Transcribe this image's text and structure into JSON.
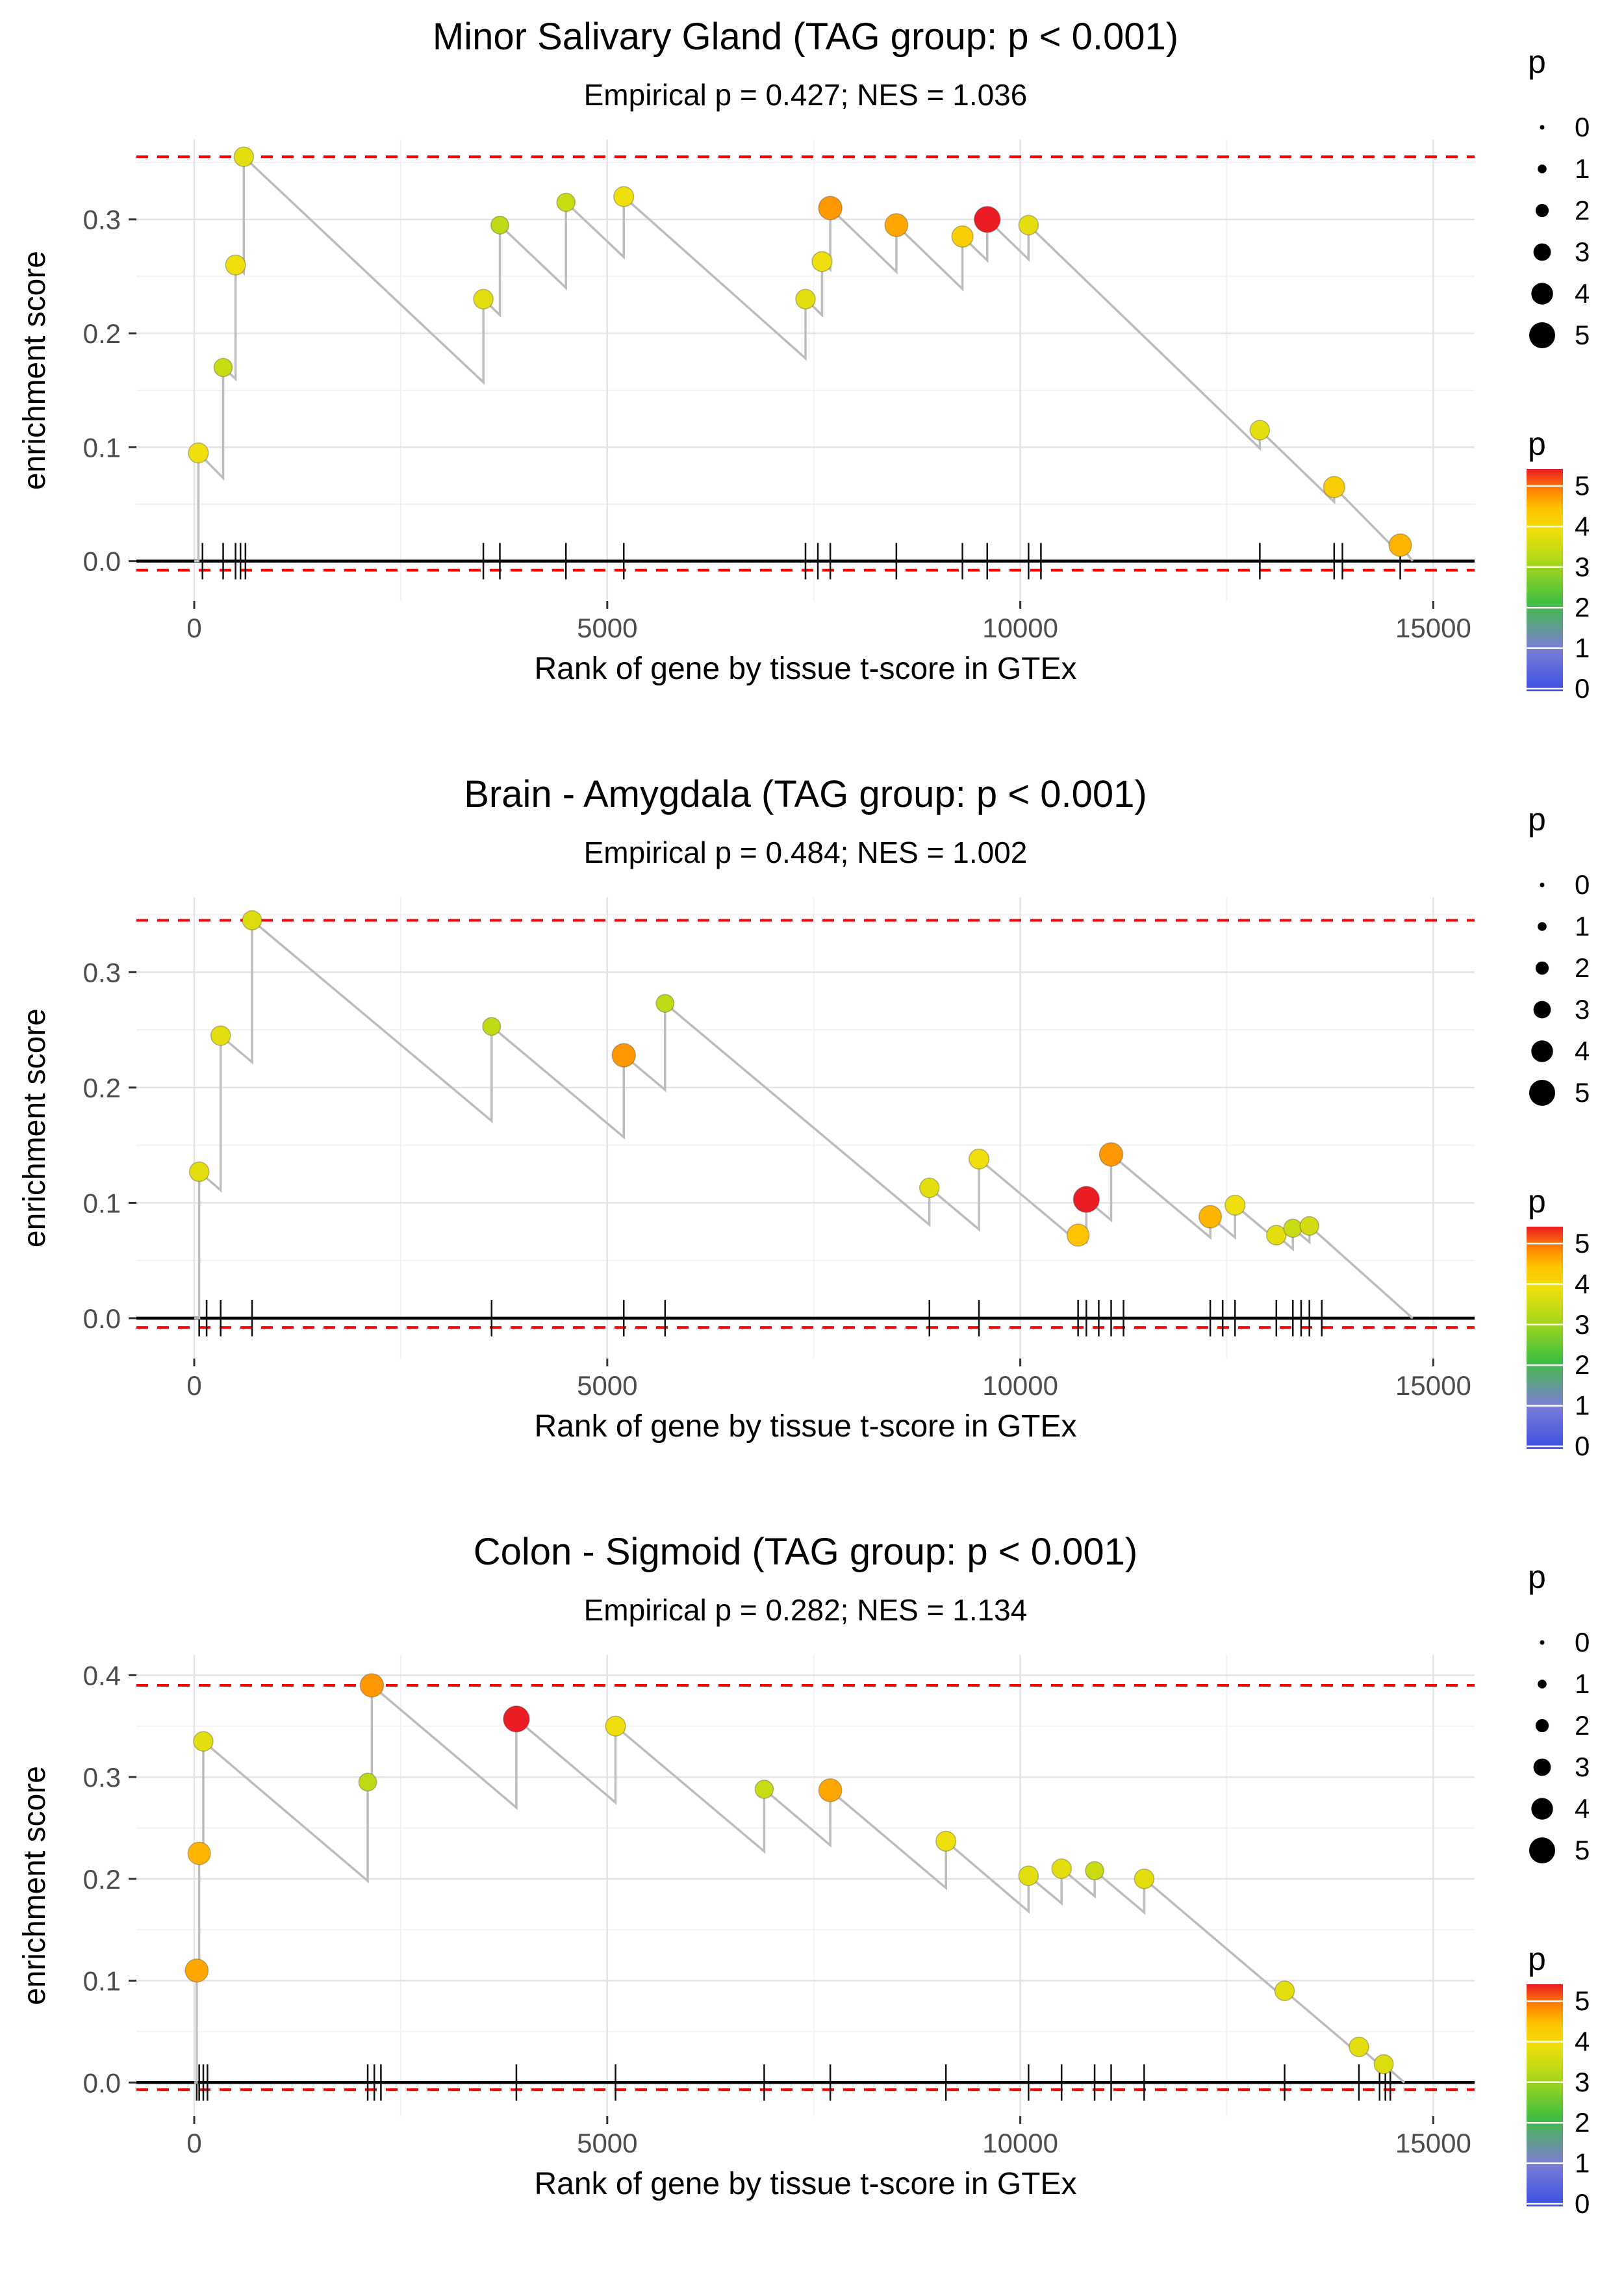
{
  "legend": {
    "position": "right",
    "size_title": "p",
    "size_values": [
      "0",
      "1",
      "2",
      "3",
      "4",
      "5"
    ],
    "color_title": "p",
    "color_labels": [
      "5",
      "4",
      "3",
      "2",
      "1",
      "0"
    ],
    "colormap": [
      {
        "p": 0,
        "color": "#3b4fe4"
      },
      {
        "p": 1,
        "color": "#7d7fd4"
      },
      {
        "p": 2,
        "color": "#3fbf3f"
      },
      {
        "p": 3,
        "color": "#b5d916"
      },
      {
        "p": 3.6,
        "color": "#efdf0c"
      },
      {
        "p": 4.1,
        "color": "#ffc300"
      },
      {
        "p": 4.5,
        "color": "#ff8800"
      },
      {
        "p": 5,
        "color": "#ec1c24"
      }
    ]
  },
  "style": {
    "threshold_color": "#ff0000",
    "running_line_color": "#bdbdbd",
    "zero_line_color": "#000000",
    "grid_major_color": "#e4e4e4",
    "grid_minor_color": "#f2f2f2",
    "rug_color": "#111111"
  },
  "chart_data": [
    {
      "type": "line",
      "title": "Minor Salivary Gland (TAG group: p < 0.001)",
      "subtitle": "Empirical p = 0.427; NES = 1.036",
      "xlabel": "Rank of gene by tissue t-score in GTEx",
      "ylabel": "enrichment score",
      "xlim": [
        -700,
        15500
      ],
      "ylim": [
        -0.035,
        0.37
      ],
      "xticks": [
        0,
        5000,
        10000,
        15000
      ],
      "xtick_labels": [
        "0",
        "5000",
        "10000",
        "15000"
      ],
      "xminor": [
        2500,
        7500,
        12500
      ],
      "yticks": [
        0,
        0.1,
        0.2,
        0.3
      ],
      "ytick_labels": [
        "0.0",
        "0.1",
        "0.2",
        "0.3"
      ],
      "yminor": [
        0.05,
        0.15,
        0.25,
        0.35
      ],
      "dashed_top": 0.355,
      "dashed_bottom": -0.008,
      "start_x": 0,
      "end_x": 14750,
      "points": [
        {
          "rank": 50,
          "pre": 0.0,
          "es": 0.095,
          "p": 3.6
        },
        {
          "rank": 350,
          "pre": 0.073,
          "es": 0.17,
          "p": 3.2
        },
        {
          "rank": 500,
          "pre": 0.16,
          "es": 0.26,
          "p": 3.6
        },
        {
          "rank": 600,
          "pre": 0.253,
          "es": 0.355,
          "p": 3.5
        },
        {
          "rank": 3500,
          "pre": 0.157,
          "es": 0.23,
          "p": 3.5
        },
        {
          "rank": 3700,
          "pre": 0.216,
          "es": 0.295,
          "p": 3.1
        },
        {
          "rank": 4500,
          "pre": 0.24,
          "es": 0.315,
          "p": 3.2
        },
        {
          "rank": 5200,
          "pre": 0.267,
          "es": 0.32,
          "p": 3.6
        },
        {
          "rank": 7400,
          "pre": 0.178,
          "es": 0.23,
          "p": 3.5
        },
        {
          "rank": 7600,
          "pre": 0.216,
          "es": 0.263,
          "p": 3.6
        },
        {
          "rank": 7700,
          "pre": 0.256,
          "es": 0.31,
          "p": 4.4
        },
        {
          "rank": 8500,
          "pre": 0.254,
          "es": 0.295,
          "p": 4.3
        },
        {
          "rank": 9300,
          "pre": 0.239,
          "es": 0.285,
          "p": 3.9
        },
        {
          "rank": 9600,
          "pre": 0.264,
          "es": 0.3,
          "p": 5
        },
        {
          "rank": 10100,
          "pre": 0.265,
          "es": 0.295,
          "p": 3.5
        },
        {
          "rank": 12900,
          "pre": 0.099,
          "es": 0.115,
          "p": 3.5
        },
        {
          "rank": 13800,
          "pre": 0.052,
          "es": 0.065,
          "p": 3.9
        },
        {
          "rank": 14600,
          "pre": 0.006,
          "es": 0.014,
          "p": 4.2
        }
      ],
      "rug": [
        100,
        350,
        500,
        560,
        620,
        3500,
        3700,
        4500,
        5200,
        7400,
        7550,
        7700,
        8500,
        9300,
        9600,
        10100,
        10250,
        12900,
        13800,
        13900,
        14600
      ]
    },
    {
      "type": "line",
      "title": "Brain - Amygdala (TAG group: p < 0.001)",
      "subtitle": "Empirical p = 0.484; NES = 1.002",
      "xlabel": "Rank of gene by tissue t-score in GTEx",
      "ylabel": "enrichment score",
      "xlim": [
        -700,
        15500
      ],
      "ylim": [
        -0.035,
        0.365
      ],
      "xticks": [
        0,
        5000,
        10000,
        15000
      ],
      "xtick_labels": [
        "0",
        "5000",
        "10000",
        "15000"
      ],
      "xminor": [
        2500,
        7500,
        12500
      ],
      "yticks": [
        0,
        0.1,
        0.2,
        0.3
      ],
      "ytick_labels": [
        "0.0",
        "0.1",
        "0.2",
        "0.3"
      ],
      "yminor": [
        0.05,
        0.15,
        0.25,
        0.35
      ],
      "dashed_top": 0.345,
      "dashed_bottom": -0.008,
      "start_x": 0,
      "end_x": 14750,
      "points": [
        {
          "rank": 60,
          "pre": 0.0,
          "es": 0.127,
          "p": 3.5
        },
        {
          "rank": 320,
          "pre": 0.111,
          "es": 0.245,
          "p": 3.5
        },
        {
          "rank": 700,
          "pre": 0.222,
          "es": 0.345,
          "p": 3.4
        },
        {
          "rank": 3600,
          "pre": 0.171,
          "es": 0.253,
          "p": 3.1
        },
        {
          "rank": 5200,
          "pre": 0.157,
          "es": 0.228,
          "p": 4.4
        },
        {
          "rank": 5700,
          "pre": 0.198,
          "es": 0.273,
          "p": 3.1
        },
        {
          "rank": 8900,
          "pre": 0.081,
          "es": 0.113,
          "p": 3.5
        },
        {
          "rank": 9500,
          "pre": 0.077,
          "es": 0.138,
          "p": 3.6
        },
        {
          "rank": 10700,
          "pre": 0.066,
          "es": 0.072,
          "p": 4.1
        },
        {
          "rank": 10800,
          "pre": 0.066,
          "es": 0.103,
          "p": 5
        },
        {
          "rank": 11100,
          "pre": 0.085,
          "es": 0.142,
          "p": 4.4
        },
        {
          "rank": 12300,
          "pre": 0.07,
          "es": 0.088,
          "p": 4.2
        },
        {
          "rank": 12600,
          "pre": 0.07,
          "es": 0.098,
          "p": 3.6
        },
        {
          "rank": 13100,
          "pre": 0.068,
          "es": 0.072,
          "p": 3.5
        },
        {
          "rank": 13300,
          "pre": 0.06,
          "es": 0.078,
          "p": 3.2
        },
        {
          "rank": 13500,
          "pre": 0.066,
          "es": 0.08,
          "p": 3.3
        }
      ],
      "rug": [
        60,
        150,
        320,
        700,
        3600,
        5200,
        5700,
        8900,
        9500,
        10700,
        10800,
        10950,
        11100,
        11250,
        12300,
        12450,
        12600,
        13100,
        13300,
        13400,
        13500,
        13650
      ]
    },
    {
      "type": "line",
      "title": "Colon - Sigmoid (TAG group: p < 0.001)",
      "subtitle": "Empirical p = 0.282; NES = 1.134",
      "xlabel": "Rank of gene by tissue t-score in GTEx",
      "ylabel": "enrichment score",
      "xlim": [
        -700,
        15500
      ],
      "ylim": [
        -0.033,
        0.42
      ],
      "xticks": [
        0,
        5000,
        10000,
        15000
      ],
      "xtick_labels": [
        "0",
        "5000",
        "10000",
        "15000"
      ],
      "xminor": [
        2500,
        7500,
        12500
      ],
      "yticks": [
        0,
        0.1,
        0.2,
        0.3,
        0.4
      ],
      "ytick_labels": [
        "0.0",
        "0.1",
        "0.2",
        "0.3",
        "0.4"
      ],
      "yminor": [
        0.05,
        0.15,
        0.25,
        0.35
      ],
      "dashed_top": 0.39,
      "dashed_bottom": -0.007,
      "start_x": 0,
      "end_x": 14650,
      "points": [
        {
          "rank": 30,
          "pre": 0.0,
          "es": 0.11,
          "p": 4.3
        },
        {
          "rank": 60,
          "pre": 0.108,
          "es": 0.225,
          "p": 4.2
        },
        {
          "rank": 110,
          "pre": 0.222,
          "es": 0.335,
          "p": 3.5
        },
        {
          "rank": 2100,
          "pre": 0.198,
          "es": 0.295,
          "p": 3.1
        },
        {
          "rank": 2150,
          "pre": 0.292,
          "es": 0.39,
          "p": 4.4
        },
        {
          "rank": 3900,
          "pre": 0.27,
          "es": 0.357,
          "p": 5
        },
        {
          "rank": 5100,
          "pre": 0.275,
          "es": 0.35,
          "p": 3.6
        },
        {
          "rank": 6900,
          "pre": 0.227,
          "es": 0.288,
          "p": 3.2
        },
        {
          "rank": 7700,
          "pre": 0.233,
          "es": 0.287,
          "p": 4.3
        },
        {
          "rank": 9100,
          "pre": 0.191,
          "es": 0.237,
          "p": 3.6
        },
        {
          "rank": 10100,
          "pre": 0.168,
          "es": 0.203,
          "p": 3.5
        },
        {
          "rank": 10500,
          "pre": 0.176,
          "es": 0.21,
          "p": 3.5
        },
        {
          "rank": 10900,
          "pre": 0.183,
          "es": 0.208,
          "p": 3.2
        },
        {
          "rank": 11500,
          "pre": 0.167,
          "es": 0.2,
          "p": 3.5
        },
        {
          "rank": 13200,
          "pre": 0.083,
          "es": 0.09,
          "p": 3.5
        },
        {
          "rank": 14100,
          "pre": 0.028,
          "es": 0.035,
          "p": 3.5
        },
        {
          "rank": 14400,
          "pre": 0.014,
          "es": 0.018,
          "p": 3.4
        }
      ],
      "rug": [
        30,
        60,
        110,
        160,
        2100,
        2180,
        2260,
        3900,
        5100,
        6900,
        7700,
        9100,
        10100,
        10500,
        10900,
        11100,
        11500,
        13200,
        14100,
        14350,
        14420,
        14480
      ]
    }
  ]
}
